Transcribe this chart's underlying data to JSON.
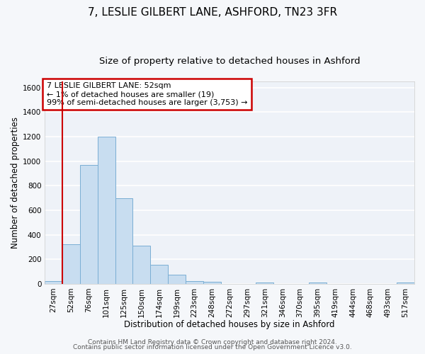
{
  "title": "7, LESLIE GILBERT LANE, ASHFORD, TN23 3FR",
  "subtitle": "Size of property relative to detached houses in Ashford",
  "xlabel": "Distribution of detached houses by size in Ashford",
  "ylabel": "Number of detached properties",
  "bin_labels": [
    "27sqm",
    "52sqm",
    "76sqm",
    "101sqm",
    "125sqm",
    "150sqm",
    "174sqm",
    "199sqm",
    "223sqm",
    "248sqm",
    "272sqm",
    "297sqm",
    "321sqm",
    "346sqm",
    "370sqm",
    "395sqm",
    "419sqm",
    "444sqm",
    "468sqm",
    "493sqm",
    "517sqm"
  ],
  "bar_values": [
    25,
    325,
    970,
    1200,
    700,
    310,
    155,
    75,
    25,
    15,
    0,
    0,
    10,
    0,
    0,
    8,
    0,
    0,
    0,
    0,
    10
  ],
  "bar_color": "#c8ddf0",
  "bar_edge_color": "#7aaed4",
  "vline_color": "#cc0000",
  "annotation_line1": "7 LESLIE GILBERT LANE: 52sqm",
  "annotation_line2": "← 1% of detached houses are smaller (19)",
  "annotation_line3": "99% of semi-detached houses are larger (3,753) →",
  "annotation_box_edge_color": "#cc0000",
  "ylim": [
    0,
    1650
  ],
  "yticks": [
    0,
    200,
    400,
    600,
    800,
    1000,
    1200,
    1400,
    1600
  ],
  "footer1": "Contains HM Land Registry data © Crown copyright and database right 2024.",
  "footer2": "Contains public sector information licensed under the Open Government Licence v3.0.",
  "fig_bg_color": "#f5f7fa",
  "plot_bg_color": "#eef2f8",
  "grid_color": "#ffffff",
  "title_fontsize": 11,
  "subtitle_fontsize": 9.5,
  "label_fontsize": 8.5,
  "tick_fontsize": 7.5,
  "annot_fontsize": 8,
  "footer_fontsize": 6.5
}
